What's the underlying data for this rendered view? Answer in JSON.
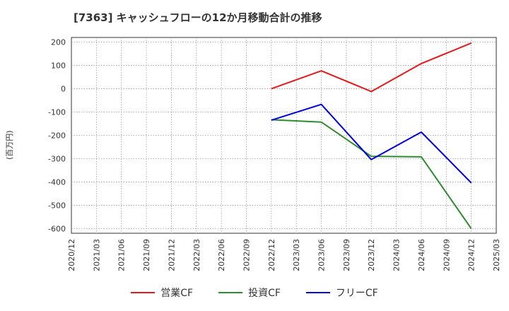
{
  "chart_data": {
    "type": "line",
    "title": "[7363]  キャッシュフローの12か月移動合計の推移",
    "ylabel": "(百万円)",
    "xlabel": "",
    "x": [
      "2020/12",
      "2021/03",
      "2021/06",
      "2021/09",
      "2021/12",
      "2022/03",
      "2022/06",
      "2022/09",
      "2022/12",
      "2023/03",
      "2023/06",
      "2023/09",
      "2023/12",
      "2024/03",
      "2024/06",
      "2024/09",
      "2024/12",
      "2025/03"
    ],
    "yticks": [
      200,
      100,
      0,
      -100,
      -200,
      -300,
      -400,
      -500,
      -600
    ],
    "ylim": [
      -620,
      220
    ],
    "grid": true,
    "legend_position": "bottom",
    "series": [
      {
        "name": "営業CF",
        "color": "#e31a1c",
        "points": [
          {
            "x": "2022/12",
            "y": 0
          },
          {
            "x": "2023/06",
            "y": 77
          },
          {
            "x": "2023/12",
            "y": -12
          },
          {
            "x": "2024/06",
            "y": 108
          },
          {
            "x": "2024/12",
            "y": 196
          }
        ]
      },
      {
        "name": "投資CF",
        "color": "#2e8b2e",
        "points": [
          {
            "x": "2022/12",
            "y": -133
          },
          {
            "x": "2023/06",
            "y": -143
          },
          {
            "x": "2023/12",
            "y": -290
          },
          {
            "x": "2024/06",
            "y": -292
          },
          {
            "x": "2024/12",
            "y": -600
          }
        ]
      },
      {
        "name": "フリーCF",
        "color": "#0000dd",
        "points": [
          {
            "x": "2022/12",
            "y": -135
          },
          {
            "x": "2023/06",
            "y": -67
          },
          {
            "x": "2023/12",
            "y": -304
          },
          {
            "x": "2024/06",
            "y": -186
          },
          {
            "x": "2024/12",
            "y": -404
          }
        ]
      }
    ]
  }
}
